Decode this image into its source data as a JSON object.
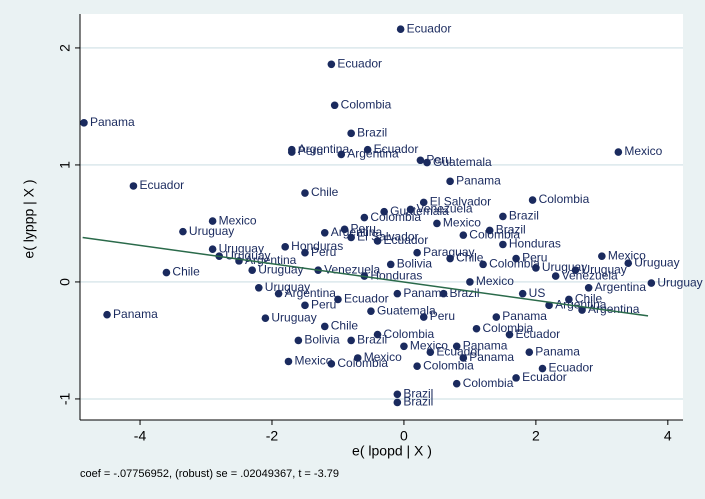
{
  "chart_data": {
    "type": "scatter",
    "xlabel": "e( lpopd | X )",
    "ylabel": "e( lyppp | X )",
    "note": "coef = -.07756952, (robust) se = .02049367, t = -3.79",
    "xlim": [
      -4.91,
      4.23
    ],
    "ylim": [
      -1.18,
      2.29
    ],
    "xticks": [
      -4,
      -2,
      0,
      2,
      4
    ],
    "yticks": [
      -1,
      0,
      1,
      2
    ],
    "grid": true,
    "color": "#1a2a5e",
    "fit_color": "#2a6a4a",
    "fit": {
      "x": [
        -4.87,
        3.7
      ],
      "y": [
        0.38,
        -0.29
      ]
    },
    "points": [
      {
        "x": -0.05,
        "y": 2.16,
        "label": "Ecuador"
      },
      {
        "x": -1.1,
        "y": 1.86,
        "label": "Ecuador"
      },
      {
        "x": -1.05,
        "y": 1.51,
        "label": "Colombia"
      },
      {
        "x": -4.85,
        "y": 1.36,
        "label": "Panama"
      },
      {
        "x": -0.8,
        "y": 1.27,
        "label": "Brazil"
      },
      {
        "x": -1.7,
        "y": 1.13,
        "label": "Argentina"
      },
      {
        "x": -0.55,
        "y": 1.13,
        "label": "Ecuador"
      },
      {
        "x": -1.7,
        "y": 1.11,
        "label": "Peru"
      },
      {
        "x": -0.95,
        "y": 1.09,
        "label": "Argentina"
      },
      {
        "x": 0.25,
        "y": 1.04,
        "label": "Peru"
      },
      {
        "x": 0.35,
        "y": 1.02,
        "label": "Guatemala"
      },
      {
        "x": 3.25,
        "y": 1.11,
        "label": "Mexico"
      },
      {
        "x": -4.1,
        "y": 0.82,
        "label": "Ecuador"
      },
      {
        "x": 0.7,
        "y": 0.86,
        "label": "Panama"
      },
      {
        "x": -1.5,
        "y": 0.76,
        "label": "Chile"
      },
      {
        "x": 1.95,
        "y": 0.7,
        "label": "Colombia"
      },
      {
        "x": 0.3,
        "y": 0.68,
        "label": "El Salvador"
      },
      {
        "x": 1.5,
        "y": 0.56,
        "label": "Brazil"
      },
      {
        "x": -2.9,
        "y": 0.52,
        "label": "Mexico"
      },
      {
        "x": -3.35,
        "y": 0.43,
        "label": "Uruguay"
      },
      {
        "x": 3.0,
        "y": 0.22,
        "label": "Mexico"
      },
      {
        "x": 3.4,
        "y": 0.16,
        "label": "Uruguay"
      },
      {
        "x": 3.75,
        "y": -0.01,
        "label": "Uruguay"
      },
      {
        "x": -3.6,
        "y": 0.08,
        "label": "Chile"
      },
      {
        "x": -4.5,
        "y": -0.28,
        "label": "Panama"
      },
      {
        "x": -2.1,
        "y": -0.31,
        "label": "Uruguay"
      },
      {
        "x": -1.75,
        "y": -0.68,
        "label": "Mexico"
      },
      {
        "x": -1.1,
        "y": -0.7,
        "label": "Colombia"
      },
      {
        "x": 0.8,
        "y": -0.87,
        "label": "Colombia"
      },
      {
        "x": -0.1,
        "y": -0.96,
        "label": "Brazil"
      },
      {
        "x": -0.1,
        "y": -1.03,
        "label": "Brazil"
      },
      {
        "x": 1.7,
        "y": -0.82,
        "label": "Ecuador"
      },
      {
        "x": 2.1,
        "y": -0.74,
        "label": "Ecuador"
      },
      {
        "x": 2.7,
        "y": -0.24,
        "label": "Argentina"
      },
      {
        "x": -2.9,
        "y": 0.28,
        "label": "Uruguay"
      },
      {
        "x": -2.8,
        "y": 0.22,
        "label": "Uruguay"
      },
      {
        "x": -2.5,
        "y": 0.18,
        "label": "Argentina"
      },
      {
        "x": -2.3,
        "y": 0.1,
        "label": "Uruguay"
      },
      {
        "x": -1.8,
        "y": 0.3,
        "label": "Honduras"
      },
      {
        "x": -1.5,
        "y": 0.25,
        "label": "Peru"
      },
      {
        "x": -1.2,
        "y": 0.42,
        "label": "Argentina"
      },
      {
        "x": -0.9,
        "y": 0.45,
        "label": "Peru"
      },
      {
        "x": -0.8,
        "y": 0.38,
        "label": "El Salvador"
      },
      {
        "x": -0.6,
        "y": 0.55,
        "label": "Colombia"
      },
      {
        "x": -0.3,
        "y": 0.6,
        "label": "Guatemala"
      },
      {
        "x": 0.1,
        "y": 0.62,
        "label": "Venezuela"
      },
      {
        "x": 0.5,
        "y": 0.5,
        "label": "Mexico"
      },
      {
        "x": 0.9,
        "y": 0.4,
        "label": "Colombia"
      },
      {
        "x": 1.3,
        "y": 0.44,
        "label": "Brazil"
      },
      {
        "x": 1.5,
        "y": 0.32,
        "label": "Honduras"
      },
      {
        "x": 1.7,
        "y": 0.2,
        "label": "Peru"
      },
      {
        "x": 2.0,
        "y": 0.12,
        "label": "Uruguay"
      },
      {
        "x": 2.3,
        "y": 0.05,
        "label": "Venezuela"
      },
      {
        "x": 2.6,
        "y": 0.1,
        "label": "Uruguay"
      },
      {
        "x": 2.8,
        "y": -0.05,
        "label": "Argentina"
      },
      {
        "x": 2.5,
        "y": -0.15,
        "label": "Chile"
      },
      {
        "x": 2.2,
        "y": -0.2,
        "label": "Argentina"
      },
      {
        "x": 1.8,
        "y": -0.1,
        "label": "US"
      },
      {
        "x": 1.4,
        "y": -0.3,
        "label": "Panama"
      },
      {
        "x": 1.1,
        "y": -0.4,
        "label": "Colombia"
      },
      {
        "x": 0.8,
        "y": -0.55,
        "label": "Panama"
      },
      {
        "x": 0.4,
        "y": -0.6,
        "label": "Ecuador"
      },
      {
        "x": 0.0,
        "y": -0.55,
        "label": "Mexico"
      },
      {
        "x": -0.4,
        "y": -0.45,
        "label": "Colombia"
      },
      {
        "x": -0.8,
        "y": -0.5,
        "label": "Brazil"
      },
      {
        "x": -1.2,
        "y": -0.38,
        "label": "Chile"
      },
      {
        "x": -1.5,
        "y": -0.2,
        "label": "Peru"
      },
      {
        "x": -1.9,
        "y": -0.1,
        "label": "Argentina"
      },
      {
        "x": -2.2,
        "y": -0.05,
        "label": "Uruguay"
      },
      {
        "x": -1.0,
        "y": -0.15,
        "label": "Ecuador"
      },
      {
        "x": -0.5,
        "y": -0.25,
        "label": "Guatemala"
      },
      {
        "x": 0.3,
        "y": -0.3,
        "label": "Peru"
      },
      {
        "x": 0.6,
        "y": -0.1,
        "label": "Brazil"
      },
      {
        "x": 1.0,
        "y": 0.0,
        "label": "Mexico"
      },
      {
        "x": -0.2,
        "y": 0.15,
        "label": "Bolivia"
      },
      {
        "x": 0.2,
        "y": 0.25,
        "label": "Paraguay"
      },
      {
        "x": -0.6,
        "y": 0.05,
        "label": "Honduras"
      },
      {
        "x": 1.2,
        "y": 0.15,
        "label": "Colombia"
      },
      {
        "x": -1.3,
        "y": 0.1,
        "label": "Venezuela"
      },
      {
        "x": 0.7,
        "y": 0.2,
        "label": "Chile"
      },
      {
        "x": -0.1,
        "y": -0.1,
        "label": "Panama"
      },
      {
        "x": 1.6,
        "y": -0.45,
        "label": "Ecuador"
      },
      {
        "x": -1.6,
        "y": -0.5,
        "label": "Bolivia"
      },
      {
        "x": 0.9,
        "y": -0.65,
        "label": "Panama"
      },
      {
        "x": 1.9,
        "y": -0.6,
        "label": "Panama"
      },
      {
        "x": -0.7,
        "y": -0.65,
        "label": "Mexico"
      },
      {
        "x": 0.2,
        "y": -0.72,
        "label": "Colombia"
      },
      {
        "x": -0.4,
        "y": 0.35,
        "label": "Ecuador"
      }
    ]
  }
}
